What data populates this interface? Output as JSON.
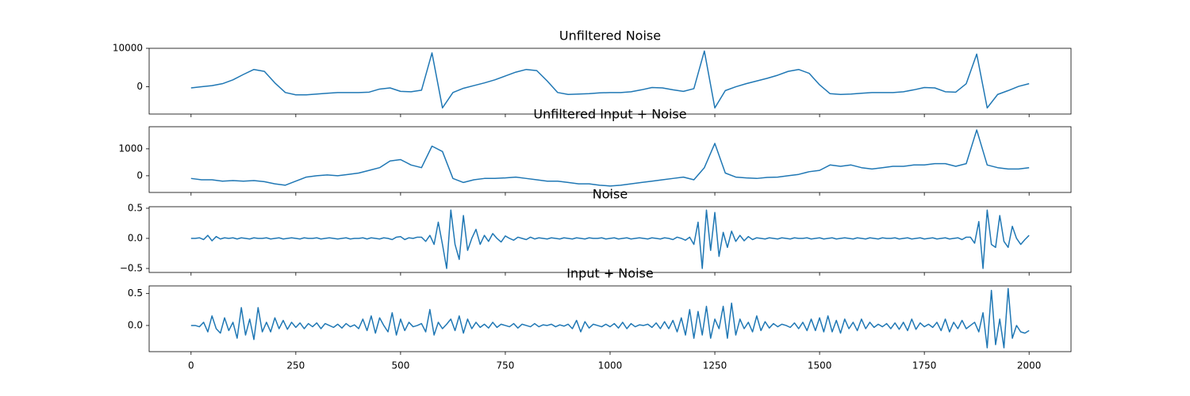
{
  "chart_data": [
    {
      "type": "line",
      "title": "Unfiltered Noise",
      "x": [
        0,
        25,
        50,
        75,
        100,
        125,
        150,
        175,
        200,
        225,
        250,
        275,
        300,
        325,
        350,
        375,
        400,
        425,
        450,
        475,
        500,
        525,
        550,
        575,
        600,
        625,
        650,
        675,
        700,
        725,
        750,
        775,
        800,
        825,
        850,
        875,
        900,
        925,
        950,
        975,
        1000,
        1025,
        1050,
        1075,
        1100,
        1125,
        1150,
        1175,
        1200,
        1225,
        1250,
        1275,
        1300,
        1325,
        1350,
        1375,
        1400,
        1425,
        1450,
        1475,
        1500,
        1525,
        1550,
        1575,
        1600,
        1625,
        1650,
        1675,
        1700,
        1725,
        1750,
        1775,
        1800,
        1825,
        1850,
        1875,
        1900,
        1925,
        1950,
        1975,
        2000
      ],
      "values": [
        -300,
        0,
        300,
        800,
        1800,
        3200,
        4500,
        4000,
        1000,
        -1500,
        -2100,
        -2100,
        -1900,
        -1700,
        -1500,
        -1500,
        -1500,
        -1400,
        -600,
        -300,
        -1200,
        -1300,
        -900,
        8800,
        -5500,
        -1500,
        -400,
        300,
        1000,
        1800,
        2800,
        3800,
        4500,
        4200,
        1500,
        -1500,
        -2000,
        -1900,
        -1800,
        -1600,
        -1500,
        -1500,
        -1300,
        -800,
        -200,
        -300,
        -800,
        -1200,
        -500,
        9300,
        -5500,
        -1000,
        0,
        800,
        1500,
        2200,
        3000,
        4000,
        4500,
        3500,
        500,
        -1800,
        -2000,
        -1900,
        -1700,
        -1500,
        -1500,
        -1500,
        -1300,
        -800,
        -200,
        -300,
        -1300,
        -1400,
        800,
        8500,
        -5500,
        -2000,
        -1000,
        100,
        800
      ],
      "color": "#1f77b4",
      "xlim": [
        -100,
        2100
      ],
      "ylim": [
        -7100,
        10000
      ],
      "xticks": [
        0,
        250,
        500,
        750,
        1000,
        1250,
        1500,
        1750,
        2000
      ],
      "yticks": [
        0,
        10000
      ]
    },
    {
      "type": "line",
      "title": "Unfiltered Input + Noise",
      "x": [
        0,
        25,
        50,
        75,
        100,
        125,
        150,
        175,
        200,
        225,
        250,
        275,
        300,
        325,
        350,
        375,
        400,
        425,
        450,
        475,
        500,
        525,
        550,
        575,
        600,
        625,
        650,
        675,
        700,
        725,
        750,
        775,
        800,
        825,
        850,
        875,
        900,
        925,
        950,
        975,
        1000,
        1025,
        1050,
        1075,
        1100,
        1125,
        1150,
        1175,
        1200,
        1225,
        1250,
        1275,
        1300,
        1325,
        1350,
        1375,
        1400,
        1425,
        1450,
        1475,
        1500,
        1525,
        1550,
        1575,
        1600,
        1625,
        1650,
        1675,
        1700,
        1725,
        1750,
        1775,
        1800,
        1825,
        1850,
        1875,
        1900,
        1925,
        1950,
        1975,
        2000
      ],
      "values": [
        -100,
        -150,
        -150,
        -200,
        -180,
        -200,
        -180,
        -220,
        -300,
        -350,
        -200,
        -50,
        0,
        30,
        0,
        50,
        100,
        200,
        300,
        550,
        600,
        400,
        300,
        1100,
        900,
        -100,
        -250,
        -150,
        -100,
        -100,
        -80,
        -50,
        -100,
        -150,
        -200,
        -200,
        -250,
        -300,
        -300,
        -350,
        -380,
        -350,
        -300,
        -250,
        -200,
        -150,
        -100,
        -50,
        -150,
        300,
        1200,
        100,
        -50,
        -80,
        -100,
        -60,
        -50,
        0,
        50,
        150,
        200,
        400,
        350,
        400,
        300,
        250,
        300,
        350,
        350,
        400,
        400,
        450,
        450,
        350,
        450,
        1700,
        400,
        300,
        250,
        250,
        300
      ],
      "color": "#1f77b4",
      "xlim": [
        -100,
        2100
      ],
      "ylim": [
        -620,
        1820
      ],
      "xticks": [
        0,
        250,
        500,
        750,
        1000,
        1250,
        1500,
        1750,
        2000
      ],
      "yticks": [
        0,
        1000
      ]
    },
    {
      "type": "line",
      "title": "Noise",
      "x": [
        0,
        10,
        20,
        30,
        40,
        50,
        60,
        70,
        80,
        90,
        100,
        110,
        120,
        130,
        140,
        150,
        160,
        170,
        180,
        190,
        200,
        210,
        220,
        230,
        240,
        250,
        260,
        270,
        280,
        290,
        300,
        310,
        320,
        330,
        340,
        350,
        360,
        370,
        380,
        390,
        400,
        410,
        420,
        430,
        440,
        450,
        460,
        470,
        480,
        490,
        500,
        510,
        520,
        530,
        540,
        550,
        560,
        570,
        580,
        590,
        600,
        610,
        620,
        630,
        640,
        650,
        660,
        670,
        680,
        690,
        700,
        710,
        720,
        730,
        740,
        750,
        760,
        770,
        780,
        790,
        800,
        810,
        820,
        830,
        840,
        850,
        860,
        870,
        880,
        890,
        900,
        910,
        920,
        930,
        940,
        950,
        960,
        970,
        980,
        990,
        1000,
        1010,
        1020,
        1030,
        1040,
        1050,
        1060,
        1070,
        1080,
        1090,
        1100,
        1110,
        1120,
        1130,
        1140,
        1150,
        1160,
        1170,
        1180,
        1190,
        1200,
        1210,
        1220,
        1230,
        1240,
        1250,
        1260,
        1270,
        1280,
        1290,
        1300,
        1310,
        1320,
        1330,
        1340,
        1350,
        1360,
        1370,
        1380,
        1390,
        1400,
        1410,
        1420,
        1430,
        1440,
        1450,
        1460,
        1470,
        1480,
        1490,
        1500,
        1510,
        1520,
        1530,
        1540,
        1550,
        1560,
        1570,
        1580,
        1590,
        1600,
        1610,
        1620,
        1630,
        1640,
        1650,
        1660,
        1670,
        1680,
        1690,
        1700,
        1710,
        1720,
        1730,
        1740,
        1750,
        1760,
        1770,
        1780,
        1790,
        1800,
        1810,
        1820,
        1830,
        1840,
        1850,
        1860,
        1870,
        1880,
        1890,
        1900,
        1910,
        1920,
        1930,
        1940,
        1950,
        1960,
        1970,
        1980,
        1990,
        2000
      ],
      "values": [
        0,
        0,
        0.01,
        -0.02,
        0.05,
        -0.04,
        0.03,
        -0.01,
        0.01,
        0,
        0.01,
        -0.01,
        0.01,
        0,
        -0.01,
        0.01,
        0,
        0,
        0.01,
        -0.01,
        0,
        0.01,
        -0.01,
        0,
        0.01,
        0,
        -0.01,
        0.01,
        0,
        0,
        0.01,
        -0.01,
        0,
        0.01,
        0,
        -0.01,
        0,
        0.01,
        -0.01,
        0,
        0,
        0.01,
        -0.01,
        0.01,
        0,
        -0.01,
        0.01,
        0,
        -0.02,
        0.02,
        0.03,
        -0.02,
        0.01,
        0,
        0.02,
        0.02,
        -0.05,
        0.05,
        -0.1,
        0.27,
        -0.1,
        -0.5,
        0.47,
        -0.1,
        -0.35,
        0.38,
        -0.2,
        0,
        0.15,
        -0.1,
        0.05,
        -0.05,
        0.08,
        0,
        -0.06,
        0.04,
        0,
        -0.03,
        0.02,
        0,
        -0.02,
        0.02,
        -0.01,
        0.01,
        0,
        -0.01,
        0.01,
        0,
        -0.01,
        0.01,
        0,
        -0.01,
        0.01,
        0,
        -0.01,
        0.01,
        0,
        0,
        0.01,
        -0.01,
        0,
        0.01,
        -0.01,
        0,
        0.01,
        -0.01,
        0,
        0.01,
        0,
        -0.01,
        0.01,
        0,
        -0.01,
        0.01,
        0,
        -0.02,
        0.02,
        0,
        -0.03,
        0.02,
        -0.1,
        0.27,
        -0.5,
        0.47,
        -0.2,
        0.43,
        -0.3,
        0.1,
        -0.15,
        0.12,
        -0.05,
        0.05,
        -0.04,
        0.03,
        -0.02,
        0.01,
        0,
        -0.01,
        0.01,
        0,
        -0.01,
        0.01,
        0,
        -0.01,
        0.01,
        0,
        0,
        0.01,
        -0.01,
        0,
        0.01,
        -0.01,
        0,
        0.01,
        -0.01,
        0,
        0.01,
        0,
        -0.01,
        0.01,
        0,
        -0.01,
        0.01,
        0,
        -0.01,
        0.01,
        0,
        0,
        0.01,
        -0.01,
        0,
        0.01,
        -0.01,
        0,
        0.01,
        -0.01,
        0,
        0.01,
        -0.01,
        0,
        0.01,
        -0.01,
        0,
        0.01,
        -0.02,
        0.02,
        0.02,
        -0.08,
        0.28,
        -0.5,
        0.47,
        -0.1,
        -0.15,
        0.38,
        -0.05,
        -0.15,
        0.2,
        0,
        -0.1,
        -0.02,
        0.05
      ],
      "color": "#1f77b4",
      "xlim": [
        -100,
        2100
      ],
      "ylim": [
        -0.566,
        0.526
      ],
      "xticks": [
        0,
        250,
        500,
        750,
        1000,
        1250,
        1500,
        1750,
        2000
      ],
      "yticks": [
        {
          "value": -0.5,
          "label": "−0.5"
        },
        {
          "value": 0,
          "label": "0.0"
        },
        0.5
      ]
    },
    {
      "type": "line",
      "title": "Input + Noise",
      "x": [
        0,
        10,
        20,
        30,
        40,
        50,
        60,
        70,
        80,
        90,
        100,
        110,
        120,
        130,
        140,
        150,
        160,
        170,
        180,
        190,
        200,
        210,
        220,
        230,
        240,
        250,
        260,
        270,
        280,
        290,
        300,
        310,
        320,
        330,
        340,
        350,
        360,
        370,
        380,
        390,
        400,
        410,
        420,
        430,
        440,
        450,
        460,
        470,
        480,
        490,
        500,
        510,
        520,
        530,
        540,
        550,
        560,
        570,
        580,
        590,
        600,
        610,
        620,
        630,
        640,
        650,
        660,
        670,
        680,
        690,
        700,
        710,
        720,
        730,
        740,
        750,
        760,
        770,
        780,
        790,
        800,
        810,
        820,
        830,
        840,
        850,
        860,
        870,
        880,
        890,
        900,
        910,
        920,
        930,
        940,
        950,
        960,
        970,
        980,
        990,
        1000,
        1010,
        1020,
        1030,
        1040,
        1050,
        1060,
        1070,
        1080,
        1090,
        1100,
        1110,
        1120,
        1130,
        1140,
        1150,
        1160,
        1170,
        1180,
        1190,
        1200,
        1210,
        1220,
        1230,
        1240,
        1250,
        1260,
        1270,
        1280,
        1290,
        1300,
        1310,
        1320,
        1330,
        1340,
        1350,
        1360,
        1370,
        1380,
        1390,
        1400,
        1410,
        1420,
        1430,
        1440,
        1450,
        1460,
        1470,
        1480,
        1490,
        1500,
        1510,
        1520,
        1530,
        1540,
        1550,
        1560,
        1570,
        1580,
        1590,
        1600,
        1610,
        1620,
        1630,
        1640,
        1650,
        1660,
        1670,
        1680,
        1690,
        1700,
        1710,
        1720,
        1730,
        1740,
        1750,
        1760,
        1770,
        1780,
        1790,
        1800,
        1810,
        1820,
        1830,
        1840,
        1850,
        1860,
        1870,
        1880,
        1890,
        1900,
        1910,
        1920,
        1930,
        1940,
        1950,
        1960,
        1970,
        1980,
        1990,
        2000
      ],
      "values": [
        0,
        0,
        -0.02,
        0.05,
        -0.1,
        0.15,
        -0.05,
        -0.12,
        0.12,
        -0.08,
        0.05,
        -0.2,
        0.28,
        -0.15,
        0.1,
        -0.22,
        0.28,
        -0.1,
        0.05,
        -0.1,
        0.12,
        -0.05,
        0.08,
        -0.06,
        0.05,
        -0.03,
        0.04,
        -0.05,
        0.03,
        -0.02,
        0.04,
        -0.05,
        0.03,
        0,
        -0.03,
        0.02,
        -0.04,
        0.03,
        -0.02,
        0.01,
        -0.05,
        0.1,
        -0.08,
        0.15,
        -0.12,
        0.12,
        0,
        -0.1,
        0.2,
        -0.15,
        0.1,
        -0.08,
        0.05,
        -0.02,
        0,
        0.03,
        -0.1,
        0.25,
        -0.15,
        0.05,
        -0.05,
        0.02,
        0.1,
        -0.08,
        0.15,
        -0.12,
        0.1,
        -0.05,
        0.05,
        -0.03,
        0.02,
        -0.04,
        0.05,
        -0.03,
        0.02,
        0,
        -0.02,
        0.03,
        -0.04,
        0.02,
        0,
        -0.02,
        0.03,
        -0.02,
        0.01,
        0,
        0.02,
        -0.02,
        0.01,
        -0.01,
        0.02,
        -0.05,
        0.08,
        -0.1,
        0.06,
        -0.04,
        0.02,
        0,
        -0.02,
        0.02,
        -0.02,
        0.03,
        -0.04,
        0.05,
        -0.05,
        0.03,
        -0.02,
        0.01,
        0,
        0.02,
        -0.03,
        0.04,
        -0.05,
        0.06,
        -0.05,
        0.08,
        -0.1,
        0.12,
        -0.15,
        0.25,
        -0.2,
        0.22,
        -0.15,
        0.3,
        -0.2,
        0.1,
        -0.05,
        0.3,
        -0.2,
        0.35,
        -0.15,
        0.1,
        -0.05,
        0.05,
        -0.1,
        0.15,
        -0.08,
        0.06,
        -0.04,
        0.03,
        -0.02,
        0.02,
        0,
        -0.03,
        0.04,
        -0.05,
        0.05,
        -0.08,
        0.1,
        -0.08,
        0.12,
        -0.1,
        0.15,
        -0.1,
        0.08,
        -0.12,
        0.1,
        -0.05,
        0.05,
        -0.08,
        0.1,
        -0.05,
        0.05,
        -0.03,
        0.02,
        -0.02,
        0.03,
        -0.05,
        0.04,
        -0.06,
        0.05,
        -0.08,
        0.1,
        -0.06,
        0.04,
        -0.02,
        0.02,
        -0.03,
        0.05,
        -0.08,
        0.1,
        -0.1,
        0.05,
        -0.05,
        0.08,
        -0.05,
        0,
        0.05,
        -0.1,
        0.2,
        -0.35,
        0.55,
        -0.3,
        0.1,
        -0.35,
        0.58,
        -0.2,
        0,
        -0.1,
        -0.12,
        -0.08
      ],
      "color": "#1f77b4",
      "xlim": [
        -100,
        2100
      ],
      "ylim": [
        -0.41,
        0.62
      ],
      "xticks": [
        0,
        250,
        500,
        750,
        1000,
        1250,
        1500,
        1750,
        2000
      ],
      "yticks": [
        {
          "value": 0,
          "label": "0.0"
        },
        0.5
      ]
    }
  ]
}
